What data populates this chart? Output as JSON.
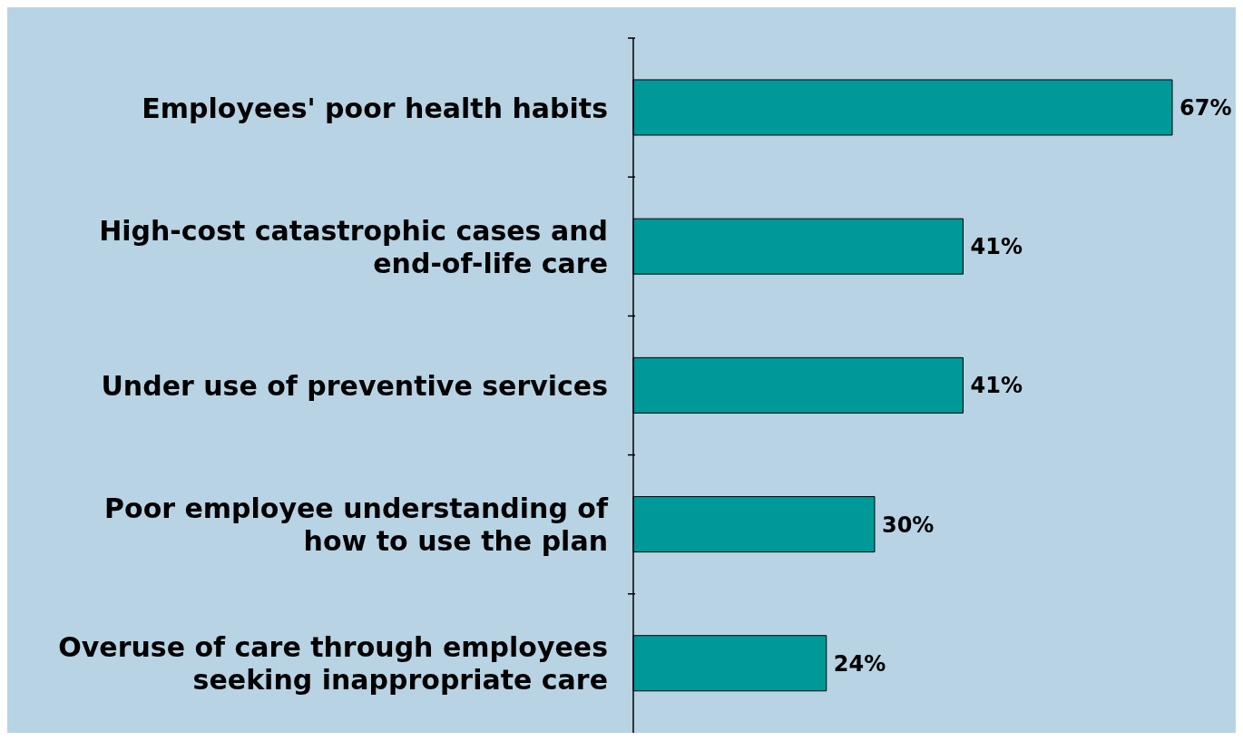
{
  "chart_data": {
    "type": "bar",
    "orientation": "horizontal",
    "categories": [
      "Employees' poor health habits",
      "High-cost catastrophic cases and end-of-life care",
      "Under use of preventive services",
      "Poor employee understanding of how to use the plan",
      "Overuse of care through employees seeking inappropriate care"
    ],
    "values": [
      67,
      41,
      41,
      30,
      24
    ],
    "value_labels": [
      "67%",
      "41%",
      "41%",
      "30%",
      "24%"
    ],
    "color": "#009999",
    "grid": false,
    "legend": false
  }
}
